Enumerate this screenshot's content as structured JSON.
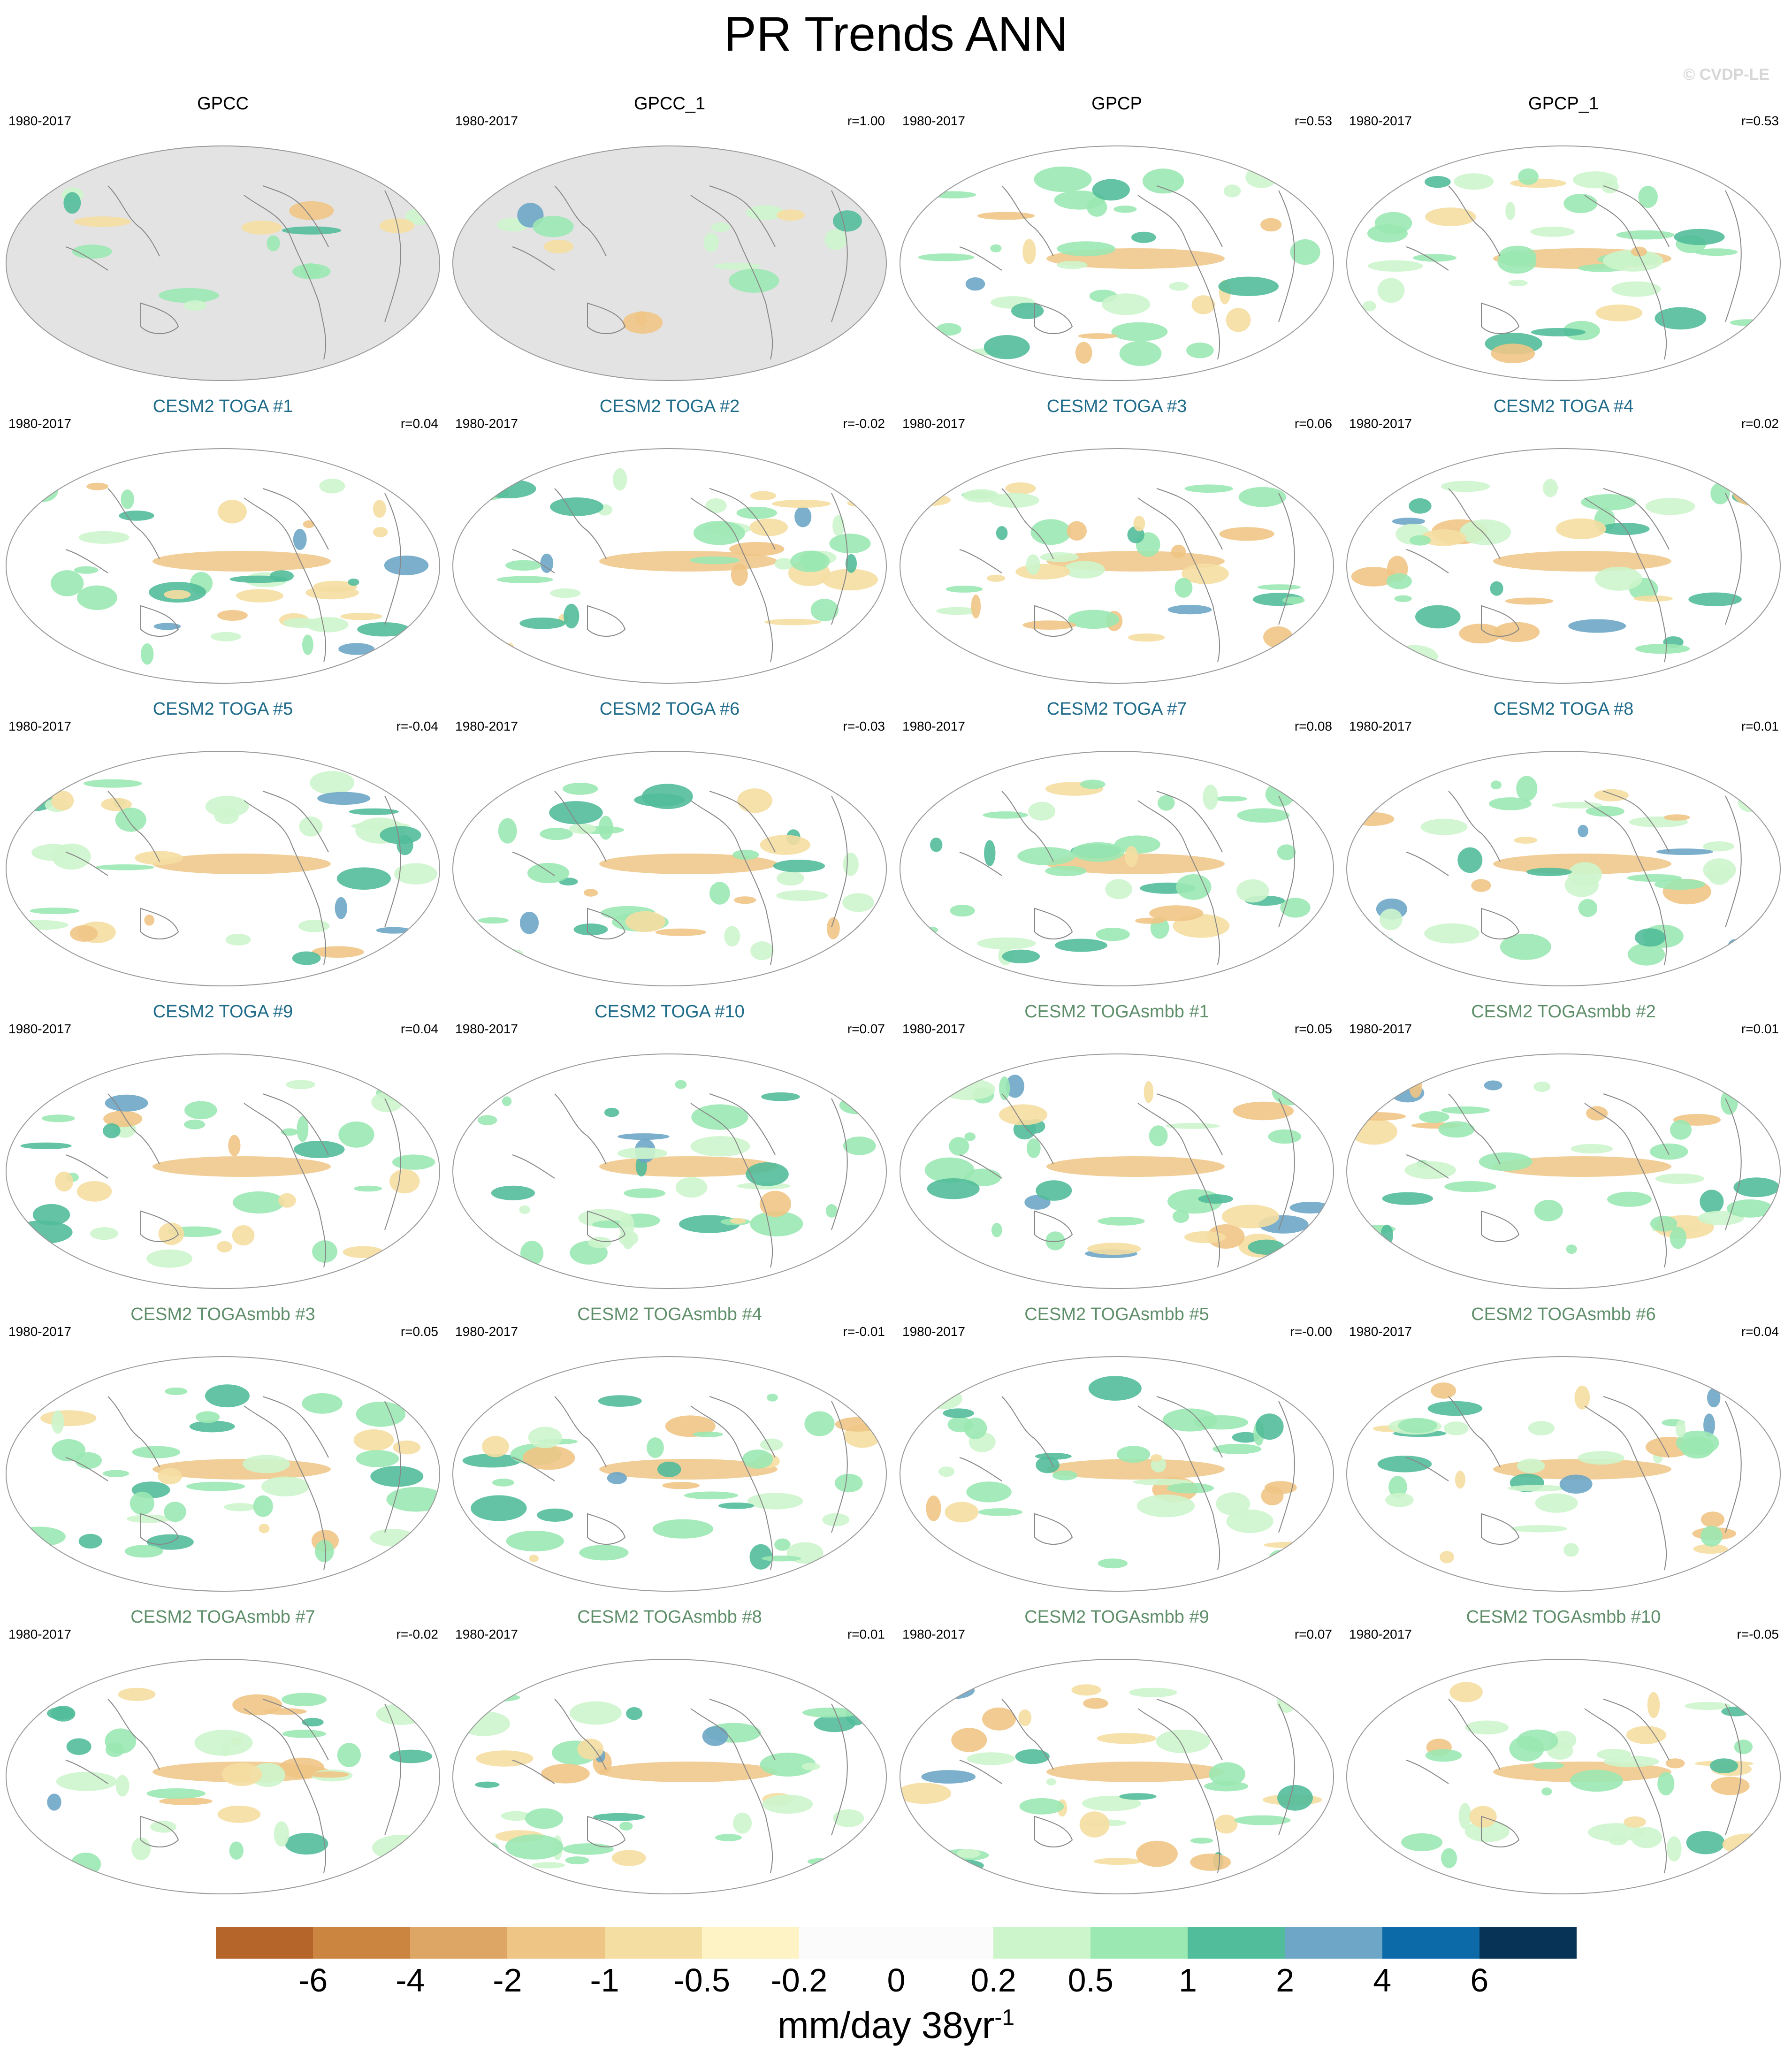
{
  "title": "PR Trends ANN",
  "copyright": "© CVDP-LE",
  "colors": {
    "obs_title": "#000000",
    "toga_title": "#1f6b8a",
    "togasmbb_title": "#5f8f6a",
    "land_mask": "#e3e3e3",
    "coast": "#888888"
  },
  "chart_data": {
    "type": "heatmap",
    "variable": "PR Trends ANN",
    "panels": [
      {
        "title": "GPCC",
        "period": "1980-2017",
        "r": "",
        "group": "obs",
        "masked_ocean": true
      },
      {
        "title": "GPCC_1",
        "period": "1980-2017",
        "r": "r=1.00",
        "group": "obs",
        "masked_ocean": true
      },
      {
        "title": "GPCP",
        "period": "1980-2017",
        "r": "r=0.53",
        "group": "obs",
        "masked_ocean": false
      },
      {
        "title": "GPCP_1",
        "period": "1980-2017",
        "r": "r=0.53",
        "group": "obs",
        "masked_ocean": false
      },
      {
        "title": "CESM2 TOGA #1",
        "period": "1980-2017",
        "r": "r=0.04",
        "group": "toga",
        "masked_ocean": false
      },
      {
        "title": "CESM2 TOGA #2",
        "period": "1980-2017",
        "r": "r=-0.02",
        "group": "toga",
        "masked_ocean": false
      },
      {
        "title": "CESM2 TOGA #3",
        "period": "1980-2017",
        "r": "r=0.06",
        "group": "toga",
        "masked_ocean": false
      },
      {
        "title": "CESM2 TOGA #4",
        "period": "1980-2017",
        "r": "r=0.02",
        "group": "toga",
        "masked_ocean": false
      },
      {
        "title": "CESM2 TOGA #5",
        "period": "1980-2017",
        "r": "r=-0.04",
        "group": "toga",
        "masked_ocean": false
      },
      {
        "title": "CESM2 TOGA #6",
        "period": "1980-2017",
        "r": "r=-0.03",
        "group": "toga",
        "masked_ocean": false
      },
      {
        "title": "CESM2 TOGA #7",
        "period": "1980-2017",
        "r": "r=0.08",
        "group": "toga",
        "masked_ocean": false
      },
      {
        "title": "CESM2 TOGA #8",
        "period": "1980-2017",
        "r": "r=0.01",
        "group": "toga",
        "masked_ocean": false
      },
      {
        "title": "CESM2 TOGA #9",
        "period": "1980-2017",
        "r": "r=0.04",
        "group": "toga",
        "masked_ocean": false
      },
      {
        "title": "CESM2 TOGA #10",
        "period": "1980-2017",
        "r": "r=0.07",
        "group": "toga",
        "masked_ocean": false
      },
      {
        "title": "CESM2 TOGAsmbb #1",
        "period": "1980-2017",
        "r": "r=0.05",
        "group": "togasmbb",
        "masked_ocean": false
      },
      {
        "title": "CESM2 TOGAsmbb #2",
        "period": "1980-2017",
        "r": "r=0.01",
        "group": "togasmbb",
        "masked_ocean": false
      },
      {
        "title": "CESM2 TOGAsmbb #3",
        "period": "1980-2017",
        "r": "r=0.05",
        "group": "togasmbb",
        "masked_ocean": false
      },
      {
        "title": "CESM2 TOGAsmbb #4",
        "period": "1980-2017",
        "r": "r=-0.01",
        "group": "togasmbb",
        "masked_ocean": false
      },
      {
        "title": "CESM2 TOGAsmbb #5",
        "period": "1980-2017",
        "r": "r=-0.00",
        "group": "togasmbb",
        "masked_ocean": false
      },
      {
        "title": "CESM2 TOGAsmbb #6",
        "period": "1980-2017",
        "r": "r=0.04",
        "group": "togasmbb",
        "masked_ocean": false
      },
      {
        "title": "CESM2 TOGAsmbb #7",
        "period": "1980-2017",
        "r": "r=-0.02",
        "group": "togasmbb",
        "masked_ocean": false
      },
      {
        "title": "CESM2 TOGAsmbb #8",
        "period": "1980-2017",
        "r": "r=0.01",
        "group": "togasmbb",
        "masked_ocean": false
      },
      {
        "title": "CESM2 TOGAsmbb #9",
        "period": "1980-2017",
        "r": "r=0.07",
        "group": "togasmbb",
        "masked_ocean": false
      },
      {
        "title": "CESM2 TOGAsmbb #10",
        "period": "1980-2017",
        "r": "r=-0.05",
        "group": "togasmbb",
        "masked_ocean": false
      }
    ],
    "colorbar": {
      "ticks": [
        "-6",
        "-4",
        "-2",
        "-1",
        "-0.5",
        "-0.2",
        "0",
        "0.2",
        "0.5",
        "1",
        "2",
        "4",
        "6"
      ],
      "colors": [
        "#b5652a",
        "#cb8540",
        "#dea665",
        "#efc585",
        "#f5dea2",
        "#fdf3c4",
        "#fbfbfb",
        "#fbfbfb",
        "#cdf5cc",
        "#9be8b3",
        "#52bd9a",
        "#6da6c7",
        "#0d6aa9",
        "#073456"
      ],
      "units_main": "mm/day 38yr",
      "units_sup": "-1"
    }
  }
}
